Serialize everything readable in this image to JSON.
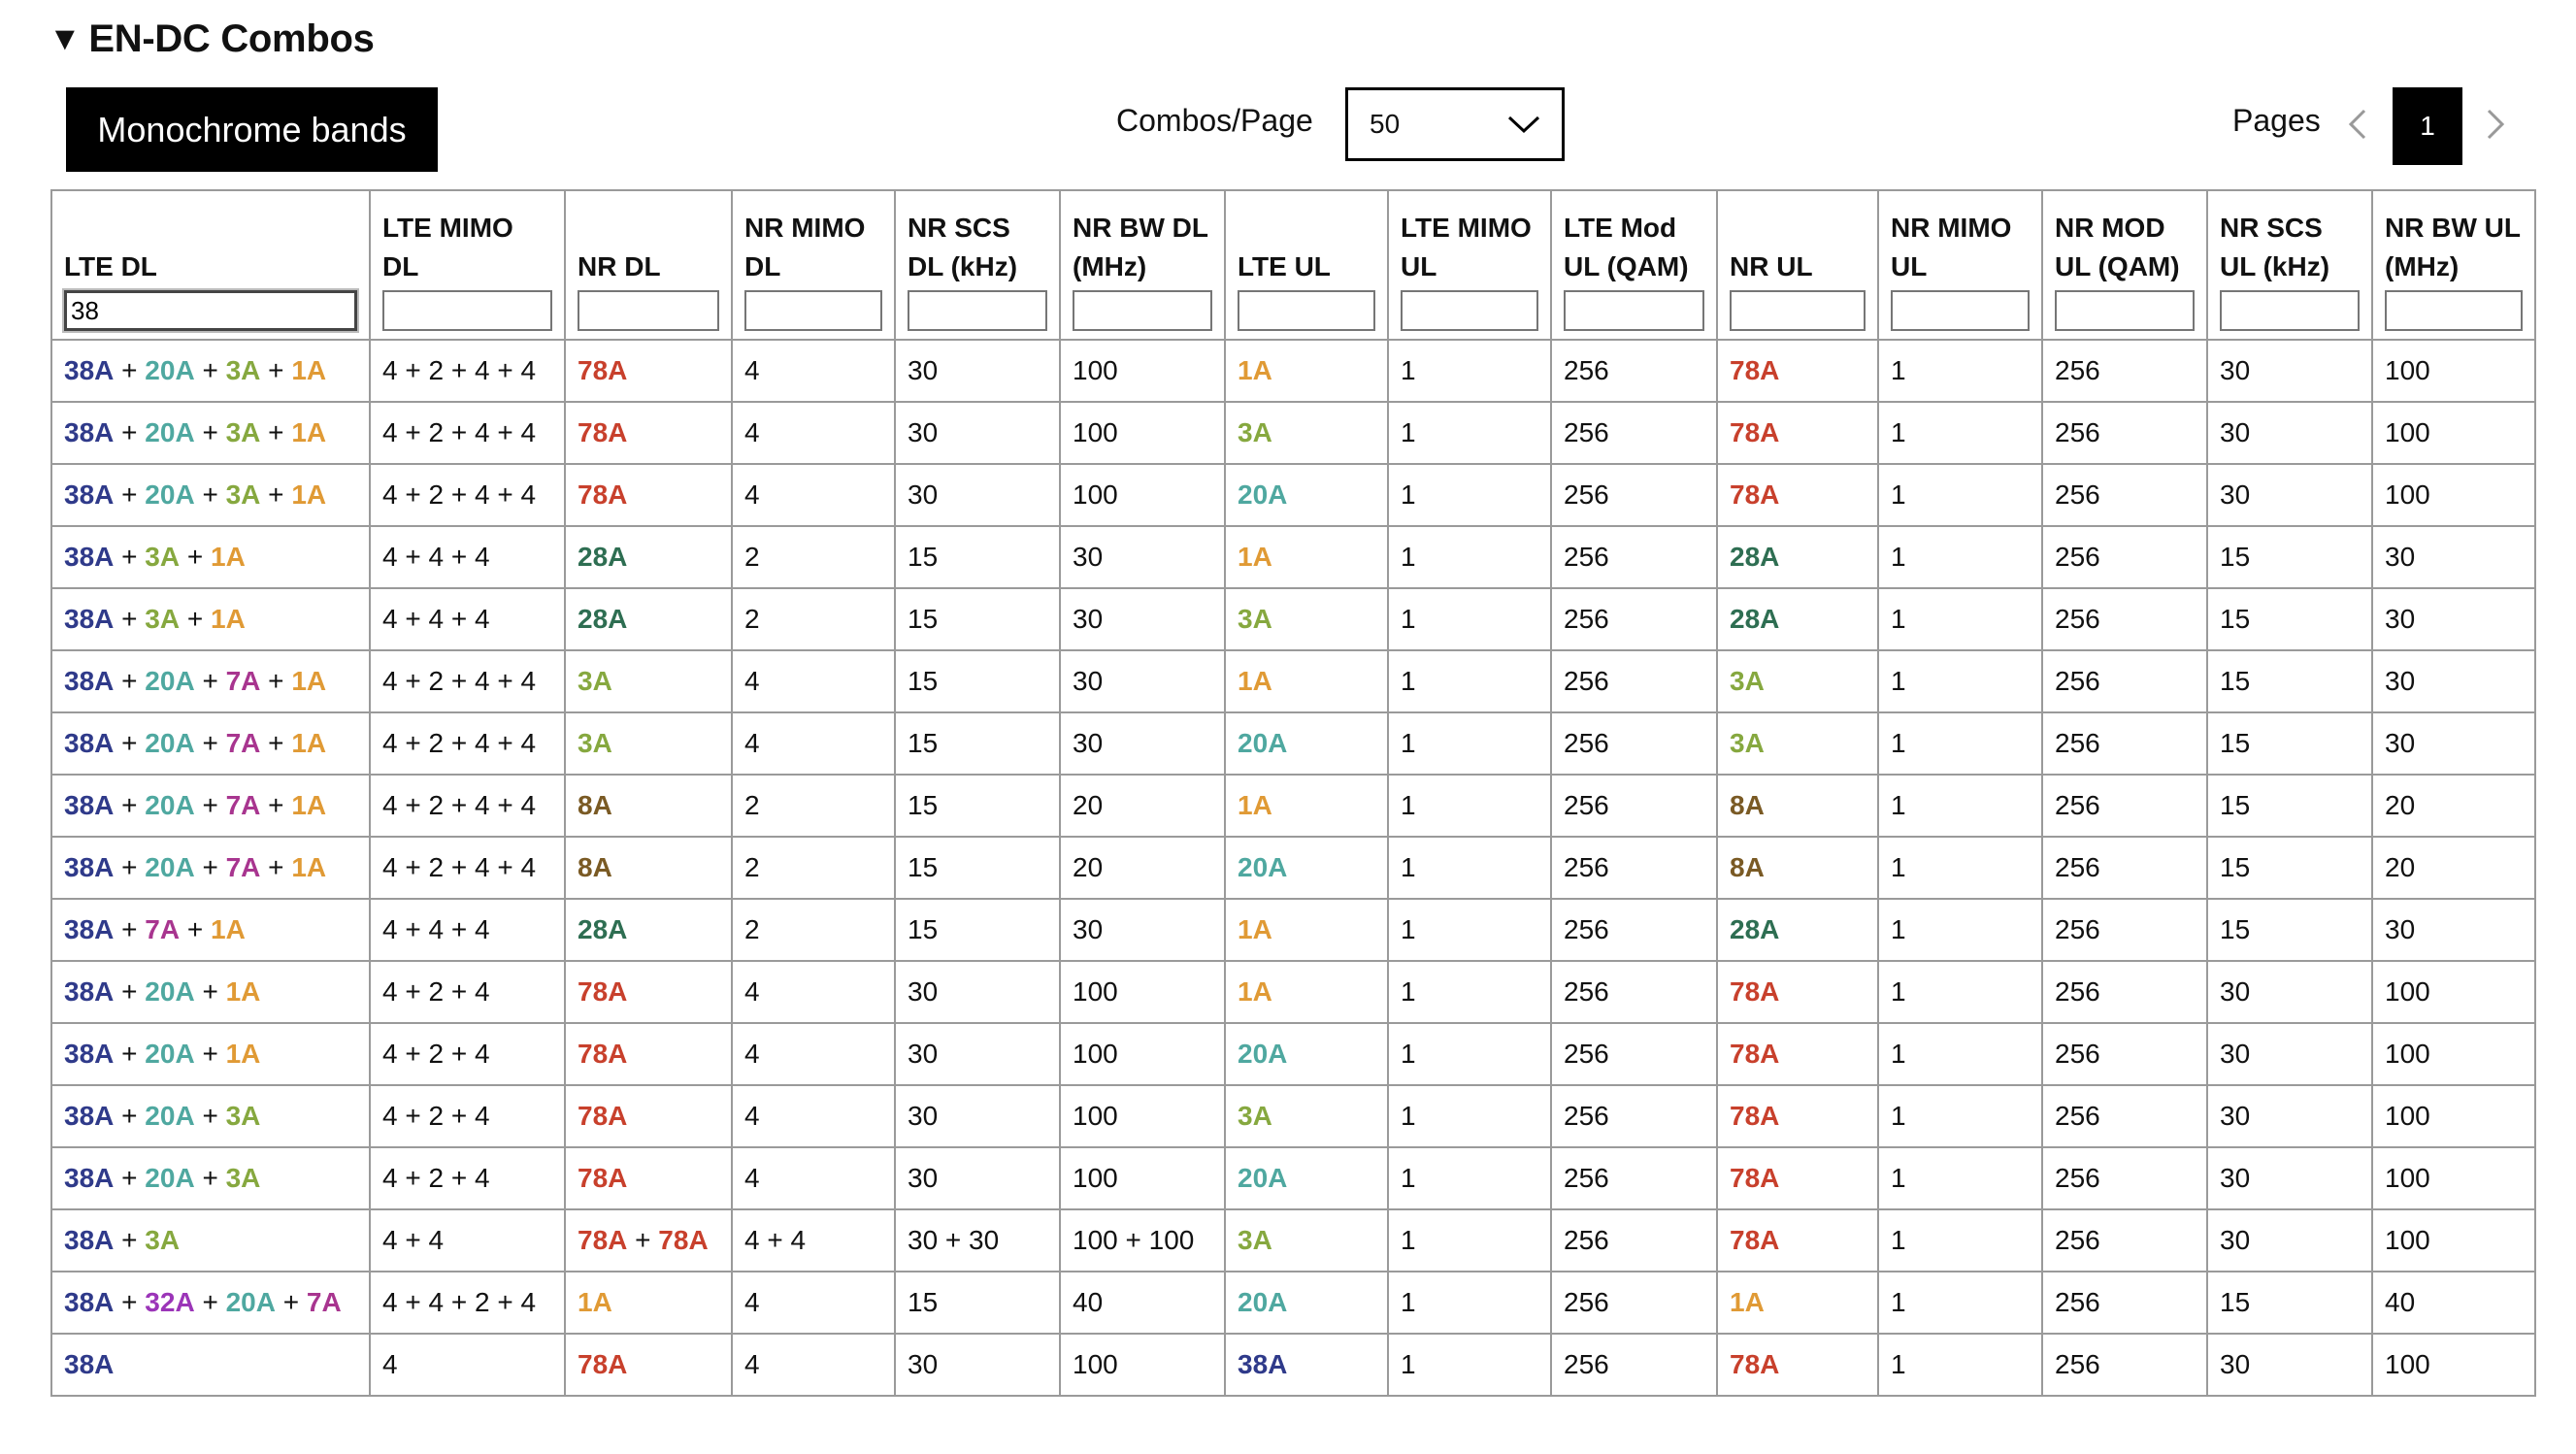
{
  "section": {
    "title": "EN-DC Combos"
  },
  "toolbar": {
    "monochrome_label": "Monochrome bands",
    "combos_per_page_label": "Combos/Page",
    "combos_per_page_value": "50",
    "pages_label": "Pages",
    "current_page": "1"
  },
  "band_colors": {
    "1A": "#e09a35",
    "3A": "#86a83f",
    "7A": "#a8358f",
    "8A": "#7a5a24",
    "20A": "#4fa8a0",
    "28A": "#2e6e52",
    "32A": "#9b35b8",
    "38A": "#2f3a8a",
    "78A": "#c8402c"
  },
  "table": {
    "columns": [
      {
        "key": "lte_dl",
        "label": "LTE DL",
        "filter": "38",
        "band": true
      },
      {
        "key": "lte_mimo_dl",
        "label": "LTE MIMO DL",
        "filter": "",
        "band": false
      },
      {
        "key": "nr_dl",
        "label": "NR DL",
        "filter": "",
        "band": true
      },
      {
        "key": "nr_mimo_dl",
        "label": "NR MIMO DL",
        "filter": "",
        "band": false
      },
      {
        "key": "nr_scs_dl",
        "label": "NR SCS DL (kHz)",
        "filter": "",
        "band": false
      },
      {
        "key": "nr_bw_dl",
        "label": "NR BW DL (MHz)",
        "filter": "",
        "band": false
      },
      {
        "key": "lte_ul",
        "label": "LTE UL",
        "filter": "",
        "band": true
      },
      {
        "key": "lte_mimo_ul",
        "label": "LTE MIMO UL",
        "filter": "",
        "band": false
      },
      {
        "key": "lte_mod_ul",
        "label": "LTE Mod UL (QAM)",
        "filter": "",
        "band": false
      },
      {
        "key": "nr_ul",
        "label": "NR UL",
        "filter": "",
        "band": true
      },
      {
        "key": "nr_mimo_ul",
        "label": "NR MIMO UL",
        "filter": "",
        "band": false
      },
      {
        "key": "nr_mod_ul",
        "label": "NR MOD UL (QAM)",
        "filter": "",
        "band": false
      },
      {
        "key": "nr_scs_ul",
        "label": "NR SCS UL (kHz)",
        "filter": "",
        "band": false
      },
      {
        "key": "nr_bw_ul",
        "label": "NR BW UL (MHz)",
        "filter": "",
        "band": false
      }
    ],
    "rows": [
      [
        "38A + 20A + 3A + 1A",
        "4 + 2 + 4 + 4",
        "78A",
        "4",
        "30",
        "100",
        "1A",
        "1",
        "256",
        "78A",
        "1",
        "256",
        "30",
        "100"
      ],
      [
        "38A + 20A + 3A + 1A",
        "4 + 2 + 4 + 4",
        "78A",
        "4",
        "30",
        "100",
        "3A",
        "1",
        "256",
        "78A",
        "1",
        "256",
        "30",
        "100"
      ],
      [
        "38A + 20A + 3A + 1A",
        "4 + 2 + 4 + 4",
        "78A",
        "4",
        "30",
        "100",
        "20A",
        "1",
        "256",
        "78A",
        "1",
        "256",
        "30",
        "100"
      ],
      [
        "38A + 3A + 1A",
        "4 + 4 + 4",
        "28A",
        "2",
        "15",
        "30",
        "1A",
        "1",
        "256",
        "28A",
        "1",
        "256",
        "15",
        "30"
      ],
      [
        "38A + 3A + 1A",
        "4 + 4 + 4",
        "28A",
        "2",
        "15",
        "30",
        "3A",
        "1",
        "256",
        "28A",
        "1",
        "256",
        "15",
        "30"
      ],
      [
        "38A + 20A + 7A + 1A",
        "4 + 2 + 4 + 4",
        "3A",
        "4",
        "15",
        "30",
        "1A",
        "1",
        "256",
        "3A",
        "1",
        "256",
        "15",
        "30"
      ],
      [
        "38A + 20A + 7A + 1A",
        "4 + 2 + 4 + 4",
        "3A",
        "4",
        "15",
        "30",
        "20A",
        "1",
        "256",
        "3A",
        "1",
        "256",
        "15",
        "30"
      ],
      [
        "38A + 20A + 7A + 1A",
        "4 + 2 + 4 + 4",
        "8A",
        "2",
        "15",
        "20",
        "1A",
        "1",
        "256",
        "8A",
        "1",
        "256",
        "15",
        "20"
      ],
      [
        "38A + 20A + 7A + 1A",
        "4 + 2 + 4 + 4",
        "8A",
        "2",
        "15",
        "20",
        "20A",
        "1",
        "256",
        "8A",
        "1",
        "256",
        "15",
        "20"
      ],
      [
        "38A + 7A + 1A",
        "4 + 4 + 4",
        "28A",
        "2",
        "15",
        "30",
        "1A",
        "1",
        "256",
        "28A",
        "1",
        "256",
        "15",
        "30"
      ],
      [
        "38A + 20A + 1A",
        "4 + 2 + 4",
        "78A",
        "4",
        "30",
        "100",
        "1A",
        "1",
        "256",
        "78A",
        "1",
        "256",
        "30",
        "100"
      ],
      [
        "38A + 20A + 1A",
        "4 + 2 + 4",
        "78A",
        "4",
        "30",
        "100",
        "20A",
        "1",
        "256",
        "78A",
        "1",
        "256",
        "30",
        "100"
      ],
      [
        "38A + 20A + 3A",
        "4 + 2 + 4",
        "78A",
        "4",
        "30",
        "100",
        "3A",
        "1",
        "256",
        "78A",
        "1",
        "256",
        "30",
        "100"
      ],
      [
        "38A + 20A + 3A",
        "4 + 2 + 4",
        "78A",
        "4",
        "30",
        "100",
        "20A",
        "1",
        "256",
        "78A",
        "1",
        "256",
        "30",
        "100"
      ],
      [
        "38A + 3A",
        "4 + 4",
        "78A + 78A",
        "4 + 4",
        "30 + 30",
        "100 + 100",
        "3A",
        "1",
        "256",
        "78A",
        "1",
        "256",
        "30",
        "100"
      ],
      [
        "38A + 32A + 20A + 7A",
        "4 + 4 + 2 + 4",
        "1A",
        "4",
        "15",
        "40",
        "20A",
        "1",
        "256",
        "1A",
        "1",
        "256",
        "15",
        "40"
      ],
      [
        "38A",
        "4",
        "78A",
        "4",
        "30",
        "100",
        "38A",
        "1",
        "256",
        "78A",
        "1",
        "256",
        "30",
        "100"
      ]
    ]
  },
  "icons": {
    "section_toggle": "triangle-down-icon",
    "select_arrow": "chevron-down-icon",
    "prev_page": "chevron-left-icon",
    "next_page": "chevron-right-icon"
  }
}
